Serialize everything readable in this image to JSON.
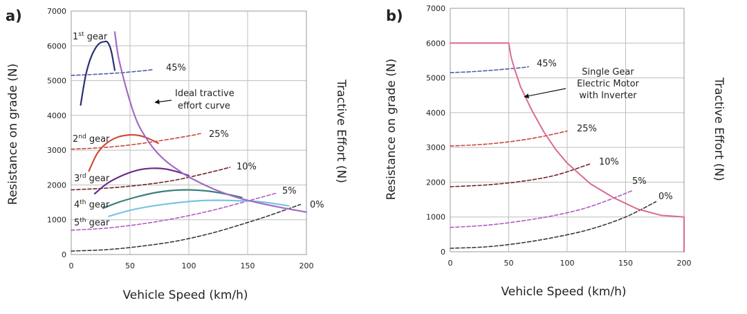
{
  "chart_data": [
    {
      "type": "line",
      "panel_label": "a)",
      "xlabel": "Vehicle Speed (km/h)",
      "ylabel": "Resistance on grade (N)",
      "y2label": "Tractive Effort (N)",
      "xlim": [
        0,
        200
      ],
      "ylim": [
        0,
        7000
      ],
      "xticks": [
        "0",
        "50",
        "100",
        "150",
        "200"
      ],
      "yticks": [
        "0",
        "1000",
        "2000",
        "3000",
        "4000",
        "5000",
        "6000",
        "7000"
      ],
      "grid": true,
      "series": [
        {
          "name": "45%",
          "label": "45%",
          "role": "resistance",
          "color": "#4a5bab",
          "dash": true,
          "x": [
            0,
            20,
            40,
            60,
            70
          ],
          "y": [
            5150,
            5180,
            5220,
            5280,
            5320
          ]
        },
        {
          "name": "25%",
          "label": "25%",
          "role": "resistance",
          "color": "#c9473d",
          "dash": true,
          "x": [
            0,
            25,
            50,
            75,
            100,
            110
          ],
          "y": [
            3030,
            3070,
            3150,
            3270,
            3410,
            3480
          ]
        },
        {
          "name": "10%",
          "label": "10%",
          "role": "resistance",
          "color": "#6e2323",
          "dash": true,
          "x": [
            0,
            30,
            60,
            90,
            120,
            135
          ],
          "y": [
            1860,
            1910,
            2000,
            2150,
            2380,
            2510
          ]
        },
        {
          "name": "5%",
          "label": "5%",
          "role": "resistance",
          "color": "#b05ac2",
          "dash": true,
          "x": [
            0,
            30,
            60,
            90,
            120,
            150,
            175
          ],
          "y": [
            700,
            760,
            880,
            1050,
            1270,
            1540,
            1770
          ]
        },
        {
          "name": "0%",
          "label": "0%",
          "role": "resistance",
          "color": "#333c33",
          "dash": true,
          "x": [
            0,
            30,
            60,
            90,
            120,
            150,
            170,
            195
          ],
          "y": [
            100,
            140,
            240,
            390,
            620,
            920,
            1140,
            1440
          ]
        },
        {
          "name": "1st gear",
          "label": "1st gear",
          "role": "gear",
          "color": "#2b2f6e",
          "dash": false,
          "x": [
            8,
            12,
            16,
            20,
            24,
            28,
            31,
            34,
            37
          ],
          "y": [
            4300,
            5100,
            5600,
            5900,
            6070,
            6120,
            6100,
            5850,
            5300
          ]
        },
        {
          "name": "2nd gear",
          "label": "2nd gear",
          "role": "gear",
          "color": "#d24a3a",
          "dash": false,
          "x": [
            15,
            22,
            30,
            40,
            50,
            58,
            66,
            74
          ],
          "y": [
            2400,
            2900,
            3200,
            3380,
            3440,
            3420,
            3330,
            3200
          ]
        },
        {
          "name": "3rd gear",
          "label": "3rd gear",
          "role": "gear",
          "color": "#6b2a88",
          "dash": false,
          "x": [
            20,
            30,
            40,
            50,
            60,
            70,
            80,
            90,
            100
          ],
          "y": [
            1750,
            2030,
            2220,
            2360,
            2450,
            2480,
            2460,
            2380,
            2270
          ]
        },
        {
          "name": "4th gear",
          "label": "4th gear",
          "role": "gear",
          "color": "#3c8078",
          "dash": false,
          "x": [
            27,
            40,
            55,
            70,
            85,
            100,
            115,
            130,
            145
          ],
          "y": [
            1330,
            1500,
            1650,
            1770,
            1840,
            1860,
            1830,
            1750,
            1640
          ]
        },
        {
          "name": "5th gear",
          "label": "5th gear",
          "role": "gear",
          "color": "#79c3e3",
          "dash": false,
          "x": [
            32,
            50,
            70,
            90,
            110,
            125,
            140,
            160,
            185
          ],
          "y": [
            1100,
            1270,
            1400,
            1490,
            1550,
            1560,
            1550,
            1520,
            1400
          ]
        },
        {
          "name": "Ideal tractive effort curve",
          "label": "Ideal tractive effort curve",
          "role": "ideal",
          "color": "#a26ac3",
          "dash": false,
          "x": [
            37,
            40,
            45,
            50,
            55,
            60,
            70,
            80,
            90,
            100,
            120,
            140,
            160,
            180,
            200
          ],
          "y": [
            6400,
            5700,
            5000,
            4400,
            3900,
            3550,
            3050,
            2700,
            2450,
            2230,
            1900,
            1650,
            1480,
            1340,
            1220
          ]
        }
      ],
      "annotations": [
        {
          "text": "Ideal tractive",
          "ref": "ideal"
        },
        {
          "text": "effort curve",
          "ref": "ideal"
        }
      ]
    },
    {
      "type": "line",
      "panel_label": "b)",
      "xlabel": "Vehicle Speed (km/h)",
      "ylabel": "Resistance on grade (N)",
      "y2label": "Tractive Effort (N)",
      "xlim": [
        0,
        200
      ],
      "ylim": [
        0,
        7000
      ],
      "xticks": [
        "0",
        "50",
        "100",
        "150",
        "200"
      ],
      "yticks": [
        "0",
        "1000",
        "2000",
        "3000",
        "4000",
        "5000",
        "6000",
        "7000"
      ],
      "grid": true,
      "series": [
        {
          "name": "45%",
          "label": "45%",
          "role": "resistance",
          "color": "#4a5bab",
          "dash": true,
          "x": [
            0,
            20,
            40,
            60,
            67
          ],
          "y": [
            5150,
            5180,
            5230,
            5290,
            5320
          ]
        },
        {
          "name": "25%",
          "label": "25%",
          "role": "resistance",
          "color": "#c9473d",
          "dash": true,
          "x": [
            0,
            25,
            50,
            75,
            100
          ],
          "y": [
            3040,
            3080,
            3160,
            3290,
            3470
          ]
        },
        {
          "name": "10%",
          "label": "10%",
          "role": "resistance",
          "color": "#6e2323",
          "dash": true,
          "x": [
            0,
            30,
            60,
            90,
            120
          ],
          "y": [
            1870,
            1920,
            2020,
            2200,
            2530
          ]
        },
        {
          "name": "5%",
          "label": "5%",
          "role": "resistance",
          "color": "#b05ac2",
          "dash": true,
          "x": [
            0,
            30,
            60,
            90,
            120,
            156
          ],
          "y": [
            700,
            760,
            880,
            1050,
            1300,
            1760
          ]
        },
        {
          "name": "0%",
          "label": "0%",
          "role": "resistance",
          "color": "#333c33",
          "dash": true,
          "x": [
            0,
            30,
            60,
            90,
            120,
            150,
            176
          ],
          "y": [
            100,
            140,
            250,
            420,
            650,
            1000,
            1440
          ]
        },
        {
          "name": "Single Gear Electric Motor with Inverter",
          "label": "Single Gear Electric Motor with Inverter",
          "role": "motor",
          "color": "#d96b8c",
          "dash": false,
          "x": [
            0,
            50,
            52,
            55,
            60,
            65,
            70,
            80,
            90,
            100,
            120,
            140,
            160,
            180,
            200,
            200
          ],
          "y": [
            6000,
            6000,
            5600,
            5250,
            4750,
            4400,
            4050,
            3450,
            2950,
            2550,
            1950,
            1550,
            1230,
            1050,
            1000,
            0
          ]
        }
      ],
      "annotations": [
        {
          "text": "Single Gear",
          "ref": "motor"
        },
        {
          "text": "Electric Motor",
          "ref": "motor"
        },
        {
          "text": "with Inverter",
          "ref": "motor"
        }
      ]
    }
  ]
}
